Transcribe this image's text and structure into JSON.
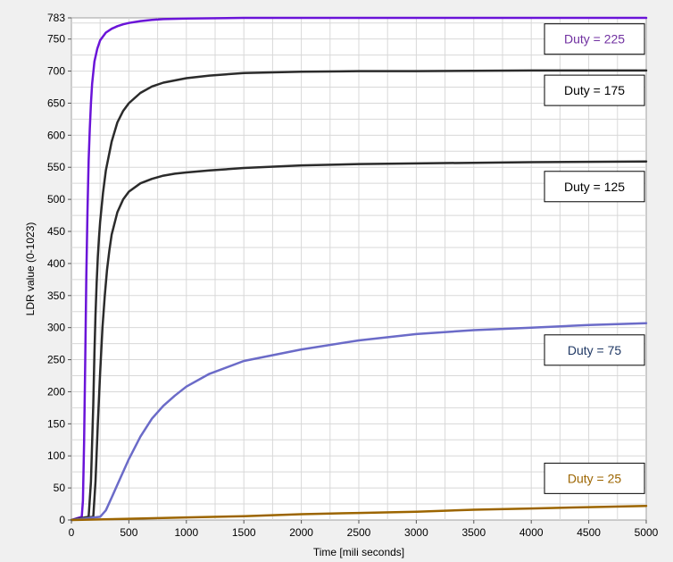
{
  "chart_data": {
    "type": "line",
    "xlabel": "Time [mili seconds]",
    "ylabel": "LDR value (0-1023)",
    "xlim": [
      0,
      5000
    ],
    "ylim": [
      0,
      783
    ],
    "x_ticks": [
      0,
      500,
      1000,
      1500,
      2000,
      2500,
      3000,
      3500,
      4000,
      4500,
      5000
    ],
    "y_ticks": [
      0,
      50,
      100,
      150,
      200,
      250,
      300,
      350,
      400,
      450,
      500,
      550,
      600,
      650,
      700,
      750,
      783
    ],
    "grid": true,
    "series": [
      {
        "name": "Duty = 225",
        "color": "#6a14d8",
        "x": [
          0,
          90,
          100,
          110,
          120,
          130,
          140,
          150,
          160,
          170,
          180,
          200,
          225,
          250,
          300,
          350,
          400,
          450,
          500,
          600,
          700,
          800,
          1000,
          1500,
          2000,
          3000,
          4000,
          5000
        ],
        "y": [
          0,
          5,
          30,
          120,
          250,
          380,
          480,
          560,
          610,
          650,
          680,
          715,
          735,
          748,
          760,
          766,
          770,
          773,
          775,
          778,
          780,
          781,
          782,
          783,
          783,
          783,
          783,
          783
        ]
      },
      {
        "name": "Duty = 175",
        "color": "#2b2b2b",
        "x": [
          0,
          150,
          170,
          190,
          200,
          210,
          220,
          230,
          240,
          250,
          275,
          300,
          350,
          400,
          450,
          500,
          600,
          700,
          800,
          1000,
          1200,
          1500,
          2000,
          2500,
          3000,
          4000,
          5000
        ],
        "y": [
          0,
          5,
          60,
          180,
          260,
          320,
          370,
          410,
          440,
          465,
          510,
          545,
          590,
          620,
          638,
          650,
          666,
          676,
          682,
          689,
          693,
          697,
          699,
          700,
          700,
          701,
          701
        ]
      },
      {
        "name": "Duty = 125",
        "color": "#2b2b2b",
        "x": [
          0,
          190,
          210,
          230,
          250,
          270,
          290,
          310,
          330,
          350,
          400,
          450,
          500,
          600,
          700,
          800,
          900,
          1000,
          1200,
          1500,
          2000,
          2500,
          3000,
          4000,
          5000
        ],
        "y": [
          0,
          5,
          60,
          150,
          230,
          300,
          350,
          390,
          420,
          445,
          480,
          500,
          512,
          525,
          532,
          537,
          540,
          542,
          545,
          549,
          553,
          555,
          556,
          558,
          559
        ]
      },
      {
        "name": "Duty = 75",
        "color": "#6b6bc8",
        "x": [
          0,
          250,
          300,
          350,
          400,
          500,
          600,
          700,
          800,
          900,
          1000,
          1200,
          1500,
          2000,
          2500,
          3000,
          3500,
          4000,
          4500,
          5000
        ],
        "y": [
          0,
          5,
          15,
          35,
          55,
          95,
          130,
          158,
          178,
          194,
          208,
          228,
          248,
          266,
          280,
          290,
          296,
          300,
          304,
          307
        ]
      },
      {
        "name": "Duty = 25",
        "color": "#9c6500",
        "x": [
          0,
          500,
          1000,
          1500,
          2000,
          2500,
          3000,
          3500,
          4000,
          4500,
          5000
        ],
        "y": [
          0,
          2,
          4,
          6,
          9,
          11,
          13,
          16,
          18,
          20,
          22
        ]
      }
    ],
    "legend_boxes": [
      {
        "label": "Duty = 225",
        "text_color": "#7030a0",
        "x": 4550,
        "y": 750
      },
      {
        "label": "Duty = 175",
        "text_color": "#000000",
        "x": 4550,
        "y": 670
      },
      {
        "label": "Duty = 125",
        "text_color": "#000000",
        "x": 4550,
        "y": 520
      },
      {
        "label": "Duty = 75",
        "text_color": "#1f3864",
        "x": 4550,
        "y": 265
      },
      {
        "label": "Duty = 25",
        "text_color": "#9c6500",
        "x": 4550,
        "y": 65
      }
    ]
  }
}
